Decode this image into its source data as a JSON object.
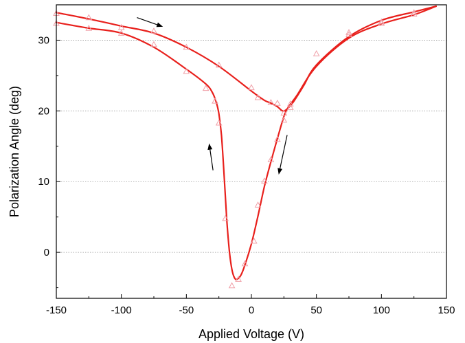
{
  "chart_data": {
    "type": "line",
    "title": "",
    "xlabel": "Applied Voltage (V)",
    "ylabel": "Polarization Angle (deg)",
    "xlim": [
      -150,
      150
    ],
    "ylim": [
      -6.5,
      35
    ],
    "xticks": [
      -150,
      -100,
      -50,
      0,
      50,
      100,
      150
    ],
    "yticks": [
      0,
      10,
      20,
      30
    ],
    "xtick_labels": [
      "-150",
      "-100",
      "-50",
      "0",
      "50",
      "100",
      "150"
    ],
    "ytick_labels": [
      "0",
      "10",
      "20",
      "30"
    ],
    "grid": "horizontal dotted",
    "legend": "none",
    "line_color": "#e8201c",
    "marker_color": "#f0a0a8",
    "series": [
      {
        "marker": "triangle",
        "x": [
          -150,
          -125,
          -100,
          -75,
          -50,
          -25,
          0,
          5,
          15,
          20,
          25,
          30,
          50,
          75,
          100,
          125
        ],
        "y": [
          33.8,
          33.2,
          31.8,
          31.3,
          29.0,
          26.5,
          23.3,
          21.9,
          21.2,
          21.1,
          19.7,
          21.0,
          28.1,
          31.1,
          32.6,
          33.9
        ]
      },
      {
        "marker": "triangle",
        "x": [
          125,
          100,
          75,
          30,
          25,
          20,
          15,
          10,
          5,
          2,
          -5,
          -10,
          -15,
          -20,
          -25,
          -28,
          -35,
          -50,
          -75,
          -100,
          -125,
          -150
        ],
        "y": [
          33.7,
          32.4,
          30.8,
          20.5,
          18.7,
          16.0,
          13.1,
          10.1,
          6.7,
          1.6,
          -1.6,
          -3.8,
          -4.7,
          4.8,
          18.3,
          21.4,
          23.2,
          25.6,
          29.4,
          31.0,
          31.7,
          32.4
        ]
      }
    ],
    "curves": [
      {
        "x": [
          -150,
          -125,
          -100,
          -75,
          -50,
          -25,
          0,
          10,
          15,
          20,
          24,
          27,
          32,
          40,
          50,
          75,
          100,
          125,
          142
        ],
        "y": [
          33.9,
          33.0,
          32.0,
          31.0,
          29.0,
          26.3,
          22.8,
          21.5,
          21.1,
          20.6,
          20.0,
          20.2,
          21.2,
          23.5,
          26.5,
          30.5,
          32.8,
          34.0,
          34.8
        ]
      },
      {
        "x": [
          142,
          125,
          100,
          75,
          50,
          35,
          28,
          25,
          20,
          15,
          10,
          5,
          0,
          -5,
          -8,
          -11,
          -13,
          -15,
          -17,
          -19,
          -21,
          -23,
          -25,
          -27,
          -30,
          -35,
          -50,
          -75,
          -100,
          -125,
          -150
        ],
        "y": [
          34.8,
          33.6,
          32.3,
          30.3,
          26.3,
          22.2,
          20.4,
          19.2,
          16.1,
          12.8,
          9.3,
          5.1,
          1.2,
          -1.8,
          -3.2,
          -3.8,
          -3.6,
          -2.4,
          0.3,
          4.8,
          11.0,
          16.5,
          19.6,
          21.2,
          22.6,
          23.8,
          25.9,
          29.0,
          31.0,
          31.7,
          32.5
        ]
      }
    ],
    "arrows": [
      {
        "from": [
          -88,
          33.2
        ],
        "to": [
          -68,
          31.9
        ]
      },
      {
        "from": [
          -29.5,
          11.6
        ],
        "to": [
          -32.5,
          15.4
        ]
      },
      {
        "from": [
          27.5,
          16.6
        ],
        "to": [
          21,
          11
        ]
      }
    ]
  }
}
